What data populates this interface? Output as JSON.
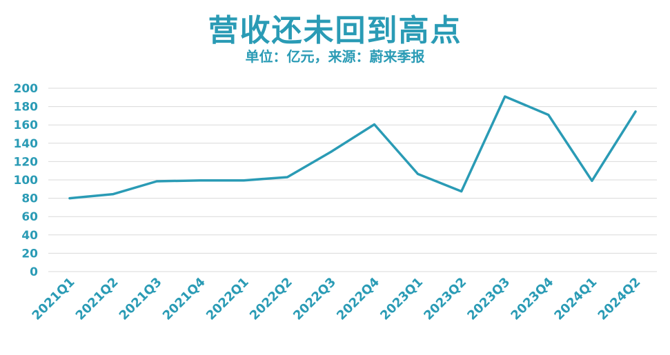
{
  "chart_data": {
    "type": "line",
    "title": "营收还未回到高点",
    "subtitle": "单位：亿元，来源：蔚来季报",
    "xlabel": "",
    "ylabel": "",
    "categories": [
      "2021Q1",
      "2021Q2",
      "2021Q3",
      "2021Q4",
      "2022Q1",
      "2022Q2",
      "2022Q3",
      "2022Q4",
      "2023Q1",
      "2023Q2",
      "2023Q3",
      "2023Q4",
      "2024Q1",
      "2024Q2"
    ],
    "series": [
      {
        "values": [
          80,
          84.5,
          98.5,
          99.5,
          99.5,
          103,
          130.5,
          160.5,
          106.5,
          87.5,
          191,
          171,
          99,
          174.5
        ]
      }
    ],
    "ylim": [
      0,
      200
    ],
    "yticks": [
      0,
      20,
      40,
      60,
      80,
      100,
      120,
      140,
      160,
      180,
      200
    ],
    "grid": true,
    "legend": "none",
    "colors": {
      "line": "#2a9bb5",
      "text": "#2a9bb5",
      "grid": "#d9d9d9"
    }
  }
}
